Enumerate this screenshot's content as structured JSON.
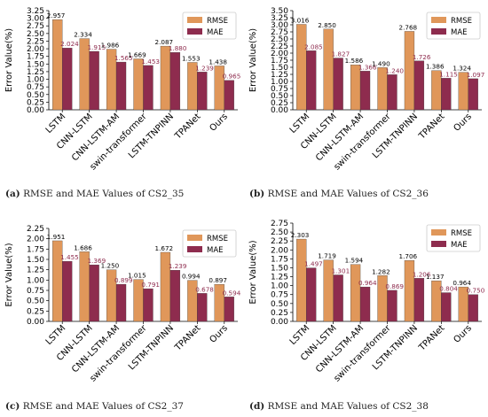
{
  "colors": {
    "rmse": "#E0975A",
    "mae": "#8E2C4E",
    "rmse_label": "#000000",
    "mae_label": "#8E2C4E"
  },
  "chart_data": [
    {
      "type": "bar",
      "caption_letter": "(a)",
      "caption_text": "RMSE and MAE Values of CS2_35",
      "ylabel": "Error Value(%)",
      "ylim": [
        0,
        3.25
      ],
      "yticks": [
        "0.00",
        "0.25",
        "0.50",
        "0.75",
        "1.00",
        "1.25",
        "1.50",
        "1.75",
        "2.00",
        "2.25",
        "2.50",
        "2.75",
        "3.00",
        "3.25"
      ],
      "categories": [
        "LSTM",
        "CNN-LSTM",
        "CNN-LSTM-AM",
        "swin-transformer",
        "LSTM-TNPINN",
        "TPANet",
        "Ours"
      ],
      "series": [
        {
          "name": "RMSE",
          "values": [
            2.957,
            2.334,
            1.986,
            1.669,
            2.087,
            1.553,
            1.438
          ],
          "labels": [
            "2.957",
            "2.334",
            "1.986",
            "1.669",
            "2.087",
            "1.553",
            "1.438"
          ]
        },
        {
          "name": "MAE",
          "values": [
            2.024,
            1.915,
            1.565,
            1.453,
            1.88,
            1.239,
            0.965
          ],
          "labels": [
            "2.024",
            "1.915",
            "1.565",
            "1.453",
            "1.880",
            "1.239",
            "0.965"
          ]
        }
      ],
      "legend": "top-right",
      "grid": false
    },
    {
      "type": "bar",
      "caption_letter": "(b)",
      "caption_text": "RMSE and MAE Values of CS2_36",
      "ylabel": "Error Value(%)",
      "ylim": [
        0,
        3.5
      ],
      "yticks": [
        "0.00",
        "0.25",
        "0.50",
        "0.75",
        "1.00",
        "1.25",
        "1.50",
        "1.75",
        "2.00",
        "2.25",
        "2.50",
        "2.75",
        "3.00",
        "3.25",
        "3.50"
      ],
      "categories": [
        "LSTM",
        "CNN-LSTM",
        "CNN-LSTM-AM",
        "swin-transformer",
        "LSTM-TNPINN",
        "TPANet",
        "Ours"
      ],
      "series": [
        {
          "name": "RMSE",
          "values": [
            3.016,
            2.85,
            1.586,
            1.49,
            2.768,
            1.386,
            1.324
          ],
          "labels": [
            "3.016",
            "2.850",
            "1.586",
            "1.490",
            "2.768",
            "1.386",
            "1.324"
          ]
        },
        {
          "name": "MAE",
          "values": [
            2.085,
            1.827,
            1.366,
            1.24,
            1.726,
            1.115,
            1.097
          ],
          "labels": [
            "2.085",
            "1.827",
            "1.366",
            "1.240",
            "1.726",
            "1.115",
            "1.097"
          ]
        }
      ],
      "legend": "top-right",
      "grid": false
    },
    {
      "type": "bar",
      "caption_letter": "(c)",
      "caption_text": "RMSE and MAE Values of CS2_37",
      "ylabel": "Error Value(%)",
      "ylim": [
        0,
        2.25
      ],
      "yticks": [
        "0.00",
        "0.25",
        "0.50",
        "0.75",
        "1.00",
        "1.25",
        "1.50",
        "1.75",
        "2.00",
        "2.25"
      ],
      "categories": [
        "LSTM",
        "CNN-LSTM",
        "CNN-LSTM-AM",
        "swin-transformer",
        "LSTM-TNPINN",
        "TPANet",
        "Ours"
      ],
      "series": [
        {
          "name": "RMSE",
          "values": [
            1.951,
            1.686,
            1.25,
            1.015,
            1.672,
            0.994,
            0.897
          ],
          "labels": [
            "1.951",
            "1.686",
            "1.250",
            "1.015",
            "1.672",
            "0.994",
            "0.897"
          ]
        },
        {
          "name": "MAE",
          "values": [
            1.455,
            1.369,
            0.899,
            0.791,
            1.239,
            0.678,
            0.594
          ],
          "labels": [
            "1.455",
            "1.369",
            "0.899",
            "0.791",
            "1.239",
            "0.678",
            "0.594"
          ]
        }
      ],
      "legend": "top-right",
      "grid": false
    },
    {
      "type": "bar",
      "caption_letter": "(d)",
      "caption_text": "RMSE and MAE Values of CS2_38",
      "ylabel": "Error Value(%)",
      "ylim": [
        0,
        2.75
      ],
      "yticks": [
        "0.00",
        "0.25",
        "0.50",
        "0.75",
        "1.00",
        "1.25",
        "1.50",
        "1.75",
        "2.00",
        "2.25",
        "2.50",
        "2.75"
      ],
      "categories": [
        "LSTM",
        "CNN-LSTM",
        "CNN-LSTM-AM",
        "swin-transformer",
        "LSTM-TNPINN",
        "TPANet",
        "Ours"
      ],
      "series": [
        {
          "name": "RMSE",
          "values": [
            2.303,
            1.719,
            1.594,
            1.282,
            1.706,
            1.137,
            0.964
          ],
          "labels": [
            "2.303",
            "1.719",
            "1.594",
            "1.282",
            "1.706",
            "1.137",
            "0.964"
          ]
        },
        {
          "name": "MAE",
          "values": [
            1.497,
            1.301,
            0.964,
            0.869,
            1.206,
            0.804,
            0.75
          ],
          "labels": [
            "1.497",
            "1.301",
            "0.964",
            "0.869",
            "1.206",
            "0.804",
            "0.750"
          ]
        }
      ],
      "legend": "top-right",
      "grid": false
    }
  ]
}
